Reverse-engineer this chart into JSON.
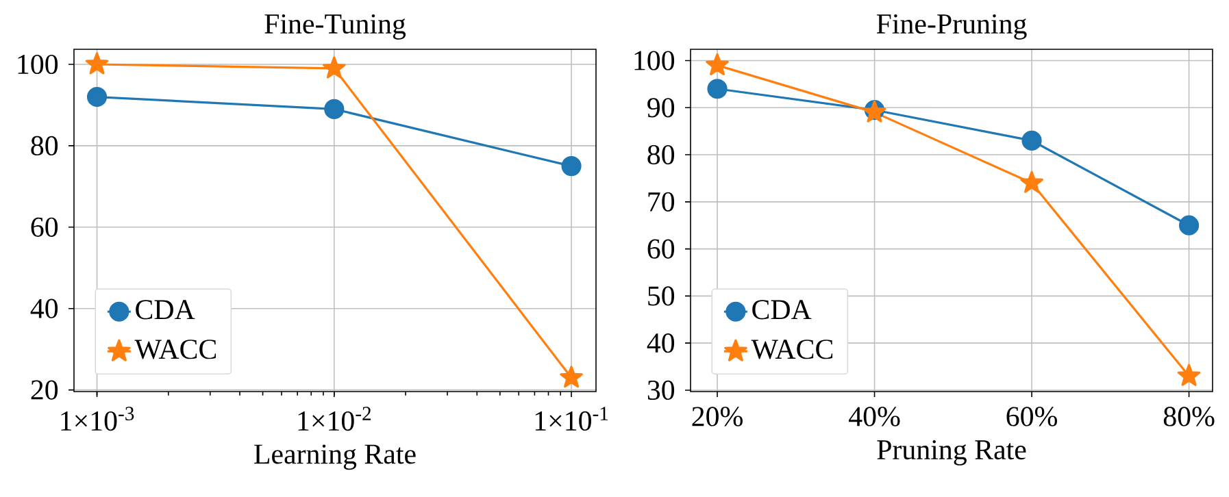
{
  "chart_data": [
    {
      "type": "line",
      "title": "Fine-Tuning",
      "xlabel": "Learning Rate",
      "x": [
        0.001,
        0.01,
        0.1
      ],
      "xlim": [
        0.0008,
        0.127
      ],
      "xticks": [
        {
          "value": 0.001,
          "label": "1×10$^{-3}$"
        },
        {
          "value": 0.01,
          "label": "1×10$^{-2}$"
        },
        {
          "value": 0.1,
          "label": "1×10$^{-1}$"
        }
      ],
      "log": "x",
      "ylim": [
        19.6,
        103.7
      ],
      "yticks": [
        20,
        40,
        60,
        80,
        100
      ],
      "grid": true,
      "legend": "bottom left",
      "series": [
        {
          "name": "CDA",
          "color": "#1f77b4",
          "marker": "circle",
          "values": [
            92,
            89,
            75
          ]
        },
        {
          "name": "WACC",
          "color": "#ff7f0e",
          "marker": "star",
          "values": [
            100,
            99,
            23
          ]
        }
      ]
    },
    {
      "type": "line",
      "title": "Fine-Pruning",
      "xlabel": "Pruning Rate",
      "categories": [
        "20%",
        "40%",
        "60%",
        "80%"
      ],
      "ylim": [
        29.7,
        102.4
      ],
      "yticks": [
        30,
        40,
        50,
        60,
        70,
        80,
        90,
        100
      ],
      "grid": true,
      "legend": "bottom left",
      "series": [
        {
          "name": "CDA",
          "color": "#1f77b4",
          "marker": "circle",
          "values": [
            94,
            89.5,
            83,
            65
          ]
        },
        {
          "name": "WACC",
          "color": "#ff7f0e",
          "marker": "star",
          "values": [
            99,
            89,
            74,
            33
          ]
        }
      ]
    }
  ]
}
